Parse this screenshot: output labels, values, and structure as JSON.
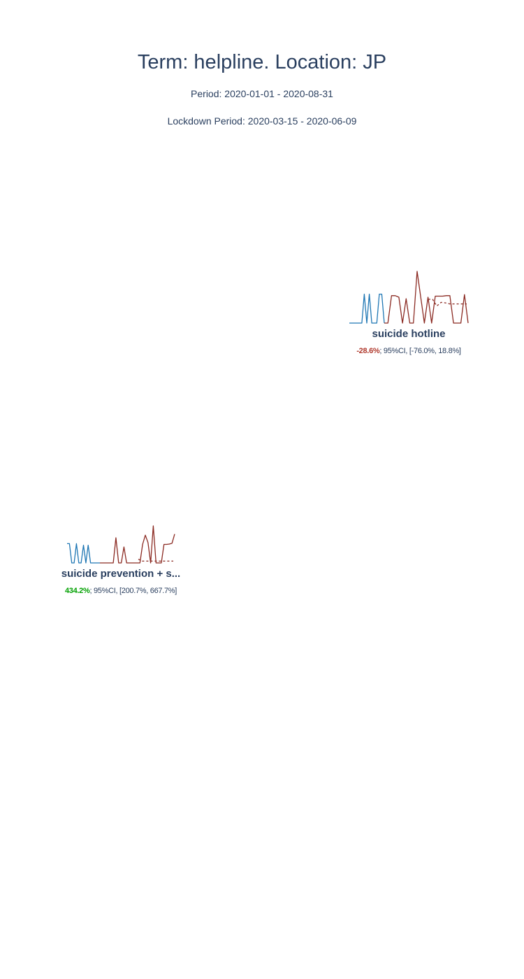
{
  "title": "Term: helpline. Location: JP",
  "period_text": "Period: 2020-01-01 - 2020-08-31",
  "lockdown_text": "Lockdown Period: 2020-03-15 - 2020-06-09",
  "colors": {
    "pre_lockdown": "#1f77b4",
    "post_lockdown": "#8b2a22",
    "baseline": "#8b2a22",
    "positive_change": "#00a000",
    "negative_change": "#b03a2e"
  },
  "chart_data": [
    {
      "type": "line",
      "name": "suicide hotline",
      "change_pct": "-28.6%",
      "ci_text": "; 95%CI, [-76.0%, 18.8%]",
      "change_sign": "negative",
      "ylim": [
        0,
        100
      ],
      "series": [
        {
          "role": "before",
          "values": [
            0,
            0,
            0,
            0,
            0,
            0,
            56,
            0,
            56,
            0,
            0,
            0,
            56,
            56,
            0
          ]
        },
        {
          "role": "after",
          "values": [
            0,
            0,
            53,
            53,
            50,
            0,
            47,
            0,
            0,
            100,
            50,
            0,
            50,
            0,
            52,
            52,
            52,
            53,
            53,
            0,
            0,
            0,
            55,
            0
          ]
        },
        {
          "role": "baseline",
          "values": [
            46,
            46,
            33,
            40,
            39,
            37,
            37,
            37,
            37,
            37
          ]
        }
      ]
    },
    {
      "type": "line",
      "name": "suicide prevention + s...",
      "change_pct": "434.2%",
      "ci_text": "; 95%CI, [200.7%, 667.7%]",
      "change_sign": "positive",
      "ylim": [
        0,
        100
      ],
      "series": [
        {
          "role": "before",
          "values": [
            52,
            52,
            0,
            0,
            52,
            0,
            0,
            48,
            0,
            48,
            0,
            0,
            0,
            0,
            0
          ]
        },
        {
          "role": "after",
          "values": [
            0,
            0,
            0,
            0,
            0,
            0,
            68,
            0,
            0,
            43,
            0,
            0,
            0,
            0,
            0,
            0,
            50,
            75,
            55,
            0,
            100,
            0,
            0,
            0,
            50,
            50,
            51,
            53,
            78
          ]
        },
        {
          "role": "baseline",
          "values": [
            10,
            5,
            5,
            5,
            5,
            5,
            5,
            5,
            5,
            5
          ]
        }
      ]
    }
  ]
}
